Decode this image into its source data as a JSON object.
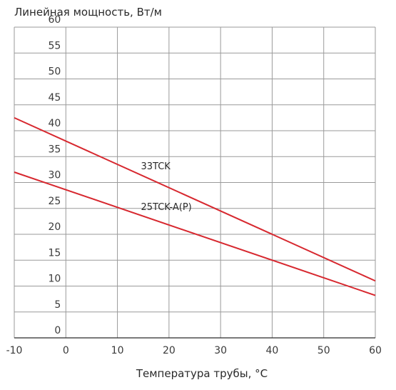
{
  "chart_data": {
    "type": "line",
    "ylabel": "Линейная мощность, Вт/м",
    "xlabel": "Температура трубы, °С",
    "xlim": [
      -10,
      60
    ],
    "ylim": [
      0,
      60
    ],
    "x_ticks": [
      "-10",
      "0",
      "10",
      "20",
      "30",
      "40",
      "50",
      "60"
    ],
    "y_ticks": [
      "0",
      "5",
      "10",
      "15",
      "20",
      "25",
      "30",
      "35",
      "40",
      "45",
      "50",
      "55",
      "60"
    ],
    "grid": true,
    "series": [
      {
        "name": "33TCK",
        "x": [
          -10,
          60
        ],
        "y": [
          42.5,
          11.0
        ],
        "color": "#d7282f",
        "label_x": 14
      },
      {
        "name": "25TCK-A(P)",
        "x": [
          -10,
          60
        ],
        "y": [
          32.0,
          8.2
        ],
        "color": "#d7282f",
        "label_x": 14
      }
    ]
  }
}
